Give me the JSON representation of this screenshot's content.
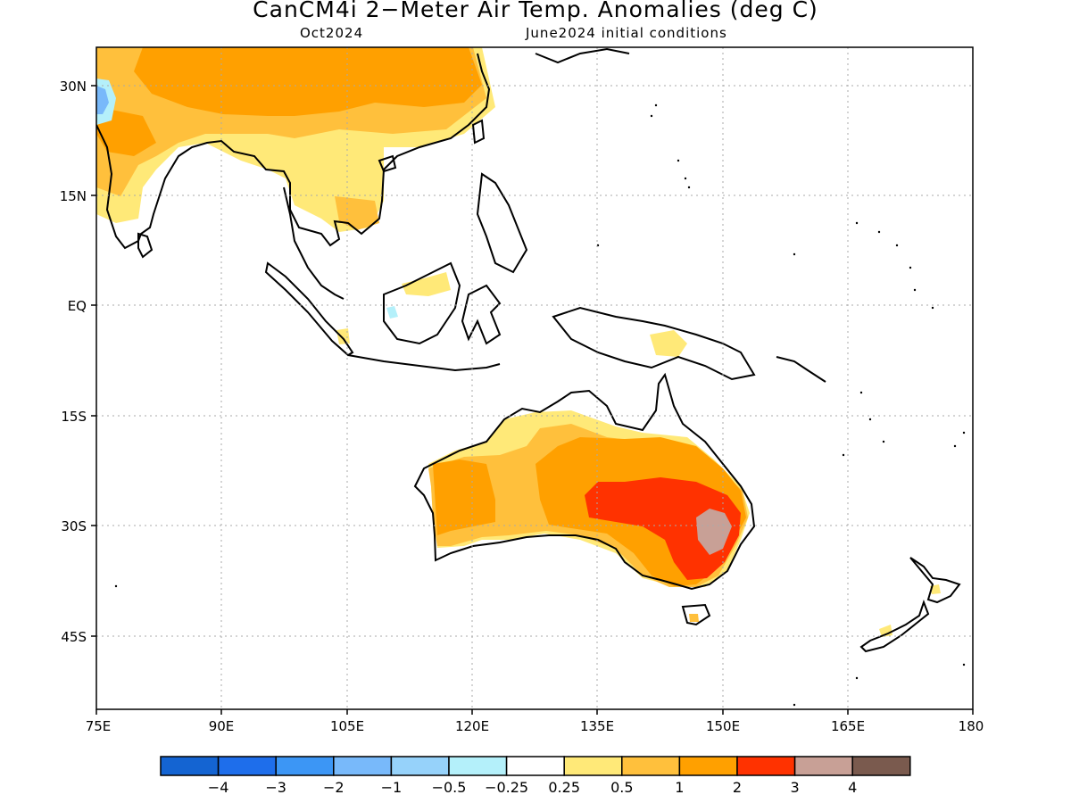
{
  "title": "CanCM4i 2−Meter Air Temp. Anomalies (deg C)",
  "subtitle_left": "Oct2024",
  "subtitle_right": "June2024 initial conditions",
  "lat_labels": [
    "30N",
    "15N",
    "EQ",
    "15S",
    "30S",
    "45S"
  ],
  "lon_labels": [
    "75E",
    "90E",
    "105E",
    "120E",
    "135E",
    "150E",
    "165E",
    "180"
  ],
  "colorbar": {
    "colors": [
      "#1464d2",
      "#1e6eeb",
      "#3c96f5",
      "#78b9fa",
      "#96d2fa",
      "#b4f0fa",
      "#ffffff",
      "#ffe978",
      "#ffc03c",
      "#ffa000",
      "#ff3200",
      "#c8a096",
      "#7a5a4e"
    ],
    "labels": [
      "−4",
      "−3",
      "−2",
      "−1",
      "−0.5",
      "−0.25",
      "0.25",
      "0.5",
      "1",
      "2",
      "3",
      "4"
    ]
  },
  "map_colors": {
    "c05": "#ffe978",
    "c1": "#ffc03c",
    "c2": "#ffa000",
    "c3": "#ff3200",
    "c4": "#c8a096",
    "cold1": "#b4f0fa",
    "cold2": "#96d2fa",
    "cold3": "#78b9fa"
  }
}
